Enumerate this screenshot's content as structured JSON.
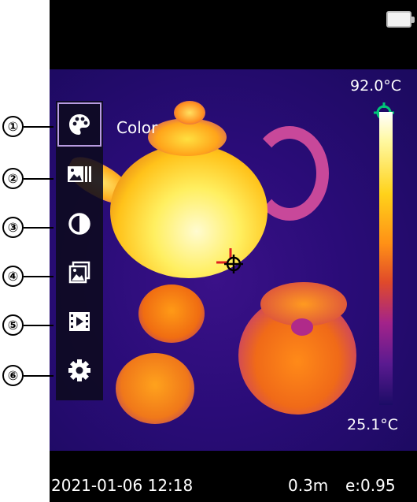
{
  "menu": {
    "items": [
      {
        "index": "①",
        "icon": "palette-icon",
        "label": "Color",
        "selected": true
      },
      {
        "index": "②",
        "icon": "image-mode-icon"
      },
      {
        "index": "③",
        "icon": "contrast-icon"
      },
      {
        "index": "④",
        "icon": "gallery-icon"
      },
      {
        "index": "⑤",
        "icon": "video-icon"
      },
      {
        "index": "⑥",
        "icon": "settings-gear-icon"
      }
    ]
  },
  "scale": {
    "max": "92.0°C",
    "min": "25.1°C"
  },
  "status": {
    "datetime": "2021-01-06 12:18",
    "distance": "0.3m",
    "emissivity": "e:0.95"
  },
  "colors": {
    "menu_selected_border": "#b89be0",
    "target_marker": "#00c878",
    "crosshair_marker": "#e02020"
  }
}
